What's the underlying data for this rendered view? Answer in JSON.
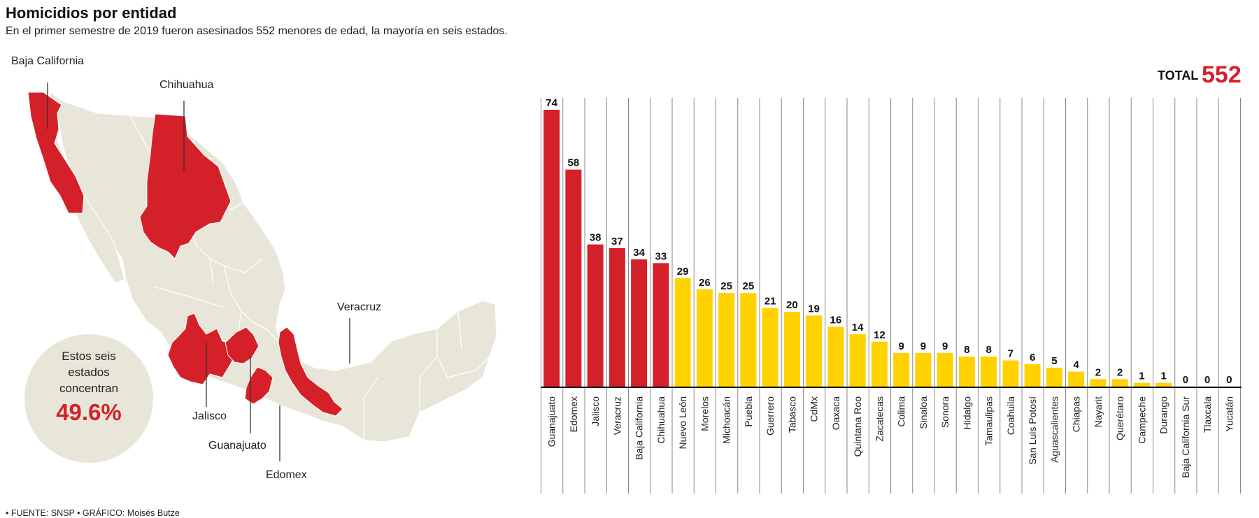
{
  "header": {
    "title": "Homicidios por entidad",
    "subtitle": "En el primer semestre de 2019 fueron asesinados 552 menores de edad, la mayoría en seis estados."
  },
  "map": {
    "labels": {
      "baja_california": "Baja California",
      "chihuahua": "Chihuahua",
      "veracruz": "Veracruz",
      "jalisco": "Jalisco",
      "guanajuato": "Guanajuato",
      "edomex": "Edomex"
    },
    "circle": {
      "lines": [
        "Estos seis",
        "estados",
        "concentran"
      ],
      "percent": "49.6%"
    },
    "colors": {
      "land": "#e8e6d8",
      "highlight": "#d42129",
      "border": "#ffffff"
    }
  },
  "total": {
    "label": "TOTAL",
    "value": "552"
  },
  "footer": {
    "source": "• FUENTE: SNSP • GRÁFICO: Moisés Butze"
  },
  "chart_data": {
    "type": "bar",
    "title": "Homicidios por entidad",
    "categories": [
      "Guanajuato",
      "Edomex",
      "Jalisco",
      "Veracruz",
      "Baja California",
      "Chihuahua",
      "Nuevo León",
      "Morelos",
      "Michoacán",
      "Puebla",
      "Guerrero",
      "Tabasco",
      "CdMx",
      "Oaxaca",
      "Quintana Roo",
      "Zacatecas",
      "Colima",
      "Sinaloa",
      "Sonora",
      "Hidalgo",
      "Tamaulipas",
      "Coahuila",
      "San Luis Potosí",
      "Aguascalientes",
      "Chiapas",
      "Nayarit",
      "Querétaro",
      "Campeche",
      "Durango",
      "Baja California Sur",
      "Tlaxcala",
      "Yucatán"
    ],
    "values": [
      74,
      58,
      38,
      37,
      34,
      33,
      29,
      26,
      25,
      25,
      21,
      20,
      19,
      16,
      14,
      12,
      9,
      9,
      9,
      8,
      8,
      7,
      6,
      5,
      4,
      2,
      2,
      1,
      1,
      0,
      0,
      0
    ],
    "highlight_count": 6,
    "ylim": [
      0,
      74
    ],
    "colors": {
      "highlight": "#d42129",
      "other": "#ffd200",
      "gridline": "#888888",
      "axis": "#111111"
    },
    "grid": "vertical separators",
    "xlabel": "",
    "ylabel": ""
  }
}
